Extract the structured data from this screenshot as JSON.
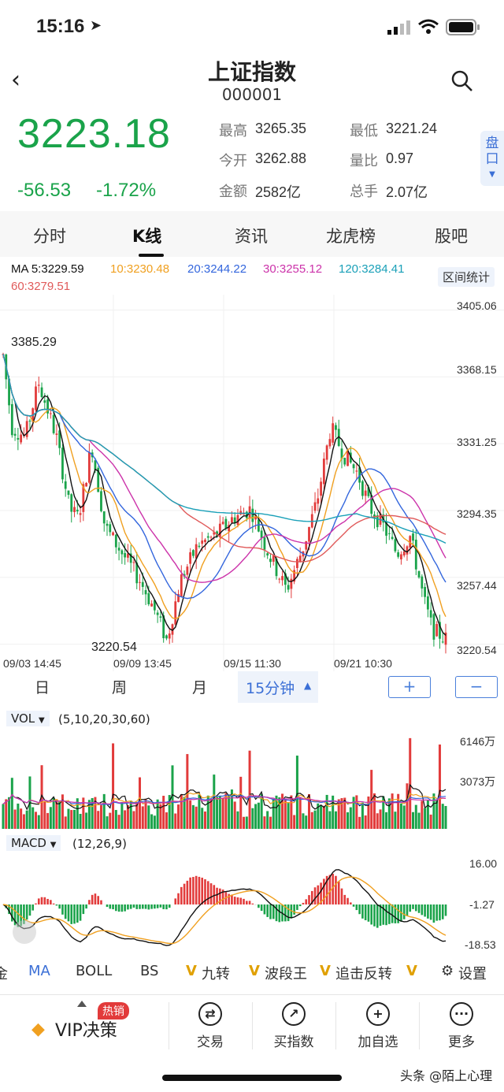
{
  "status_bar": {
    "time": "15:16"
  },
  "header": {
    "title": "上证指数",
    "code": "000001"
  },
  "quote": {
    "price": "3223.18",
    "change": "-56.53",
    "change_pct": "-1.72%",
    "stats": [
      {
        "label": "最高",
        "value": "3265.35"
      },
      {
        "label": "最低",
        "value": "3221.24"
      },
      {
        "label": "今开",
        "value": "3262.88"
      },
      {
        "label": "量比",
        "value": "0.97"
      },
      {
        "label": "金额",
        "value": "2582亿"
      },
      {
        "label": "总手",
        "value": "2.07亿"
      }
    ],
    "pankou": "盘口"
  },
  "tabs": [
    "分时",
    "K线",
    "资讯",
    "龙虎榜",
    "股吧"
  ],
  "ma_legend": {
    "ma5": "MA 5:3229.59",
    "ma10": "10:3230.48",
    "ma20": "20:3244.22",
    "ma30": "30:3255.12",
    "ma120": "120:3284.41",
    "ma60": "60:3279.51",
    "range_stats": "区间统计"
  },
  "kline": {
    "y_ticks": [
      "3405.06",
      "3368.15",
      "3331.25",
      "3294.35",
      "3257.44",
      "3220.54"
    ],
    "high_annotation": "3385.29",
    "low_annotation": "3220.54",
    "x_ticks": [
      "09/03  14:45",
      "09/09  13:45",
      "09/15  11:30",
      "09/21  10:30"
    ]
  },
  "periods": {
    "day": "日",
    "week": "周",
    "month": "月",
    "selected": "15分钟",
    "zoom_in": "+",
    "zoom_out": "−"
  },
  "vol": {
    "label": "VOL",
    "params": "(5,10,20,30,60)",
    "y_ticks": [
      "6146万",
      "3073万"
    ]
  },
  "macd": {
    "label": "MACD",
    "params": "(12,26,9)",
    "y_ticks": [
      "16.00",
      "-1.27",
      "-18.53"
    ]
  },
  "indicator_tabs": [
    "金",
    "MA",
    "BOLL",
    "BS",
    "九转",
    "波段王",
    "追击反转",
    "V",
    "设置"
  ],
  "bottom_nav": {
    "vip": "VIP决策",
    "hot_badge": "热销",
    "items": [
      "交易",
      "买指数",
      "加自选",
      "更多"
    ]
  },
  "watermark": "头条 @陌上心理",
  "colors": {
    "up": "#e23b3b",
    "down": "#1aa34a",
    "ma5": "#111111",
    "ma10": "#f0a020",
    "ma20": "#3366dd",
    "ma30": "#cc33aa",
    "ma60": "#e05a5a",
    "ma120": "#1aa0b8"
  }
}
